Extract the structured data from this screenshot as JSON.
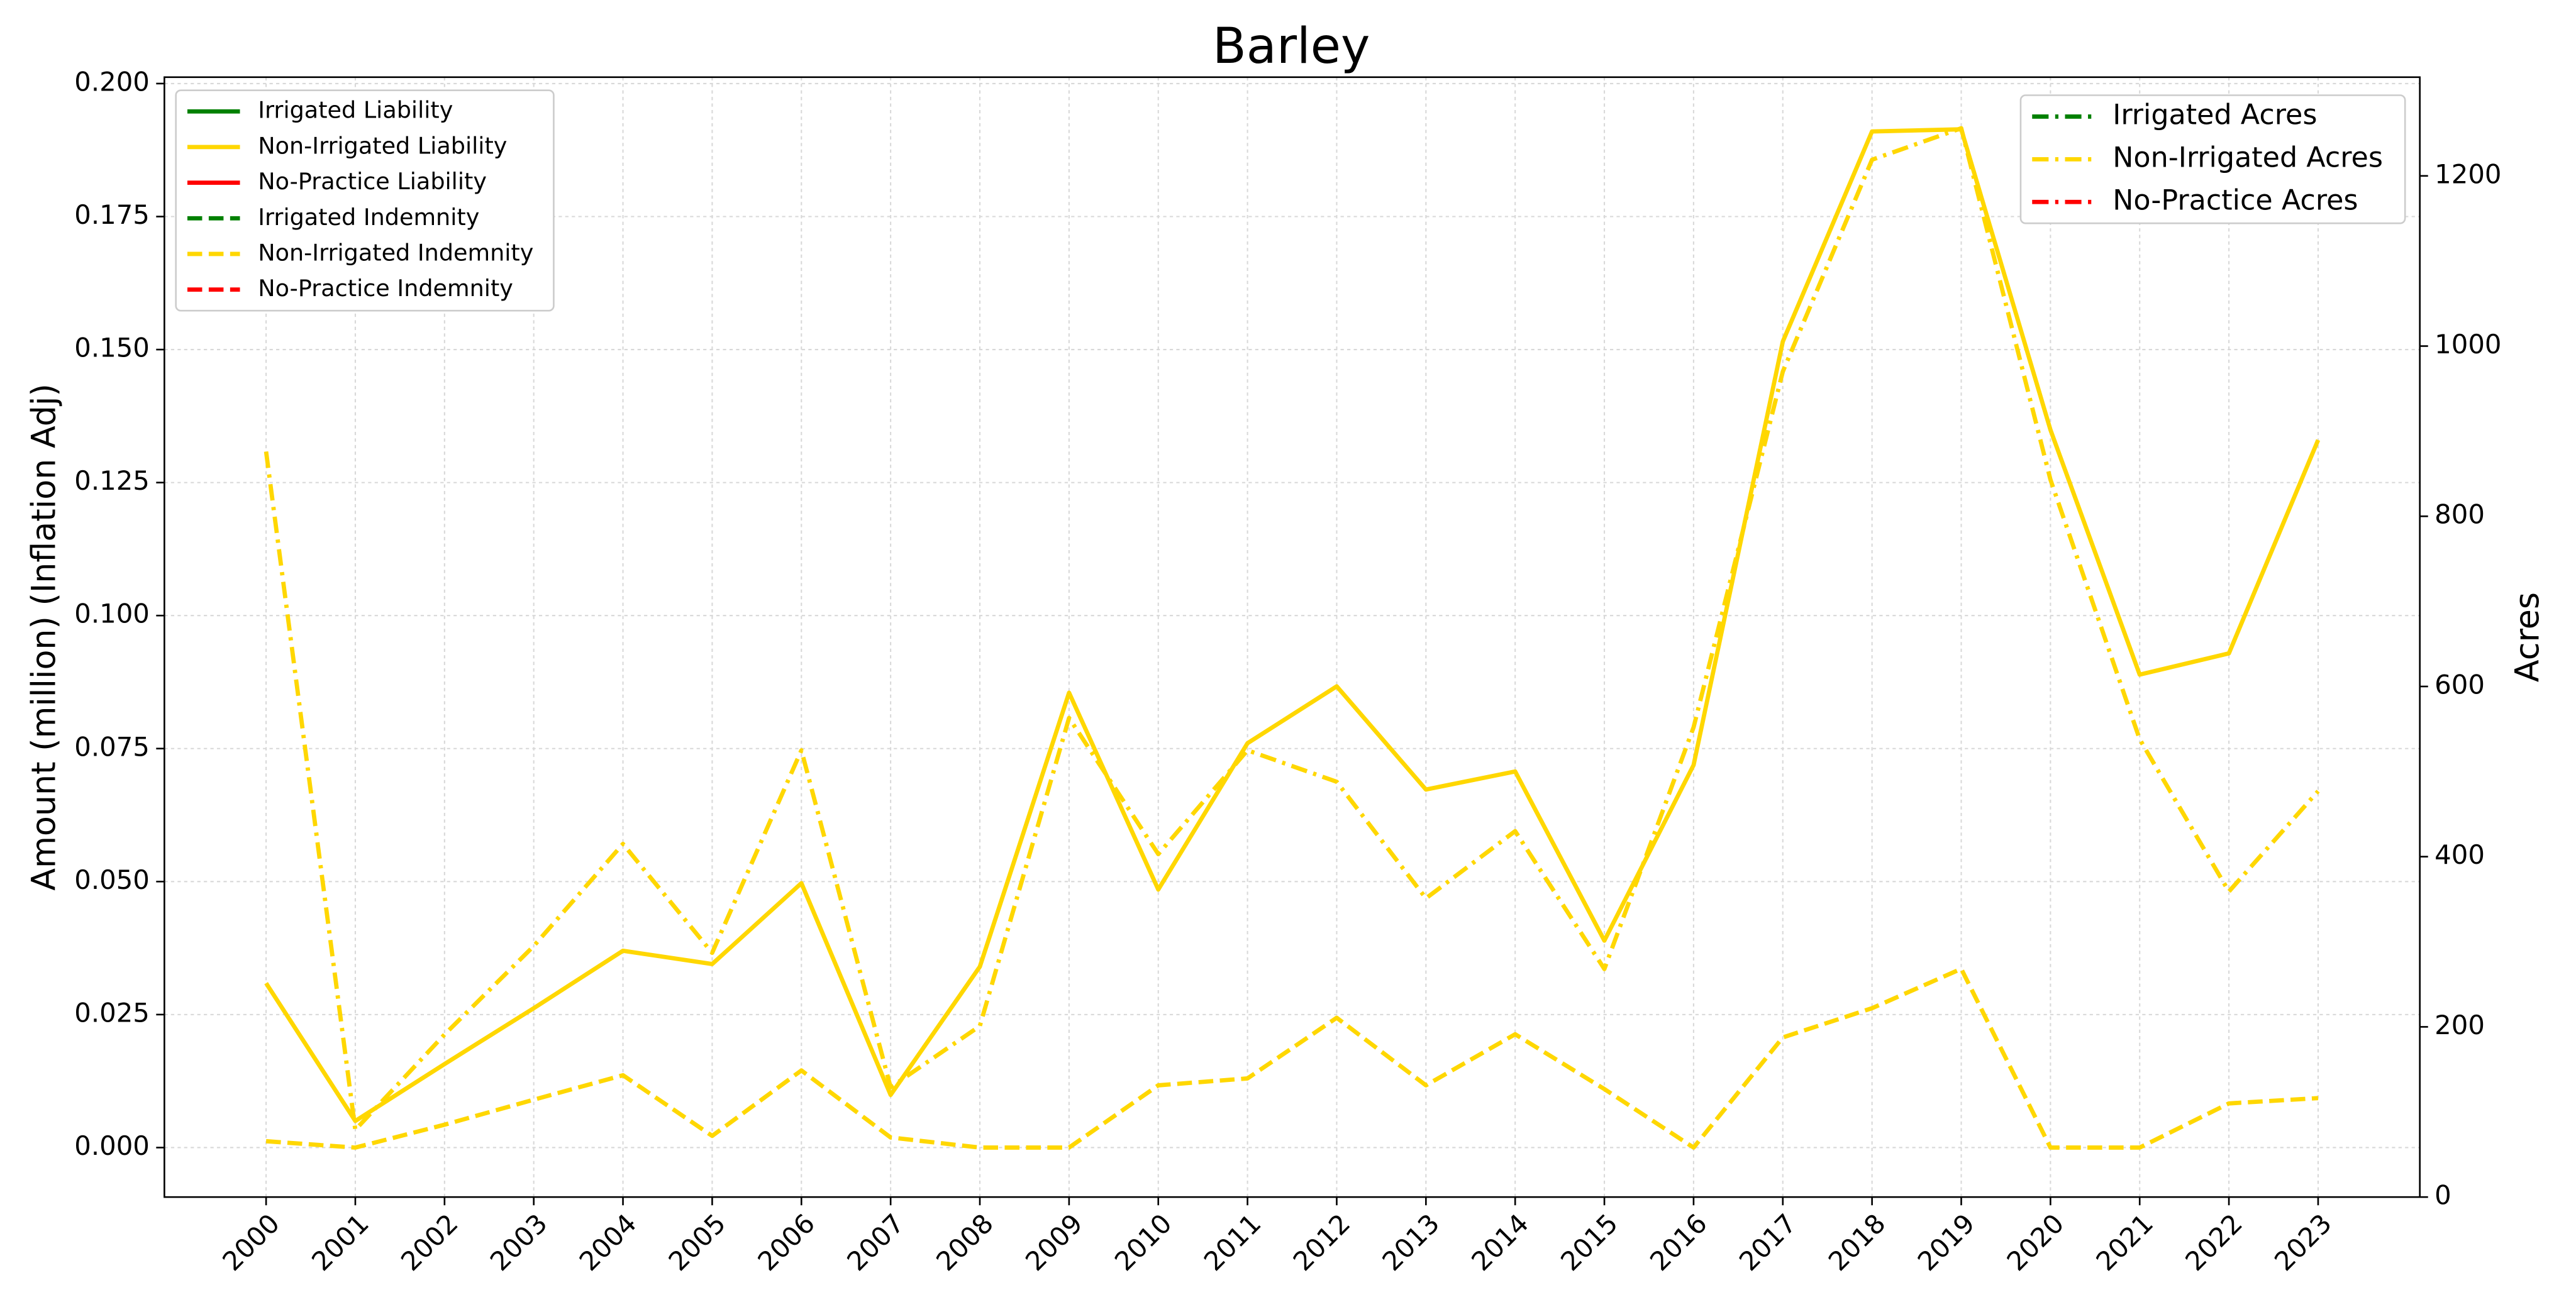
{
  "chart_data": {
    "type": "line",
    "title": "Barley",
    "ylabel": "Amount (million) (Inflation Adj)",
    "y2label": "Acres",
    "x": [
      2000,
      2001,
      2002,
      2003,
      2004,
      2005,
      2006,
      2007,
      2008,
      2009,
      2010,
      2011,
      2012,
      2013,
      2014,
      2015,
      2016,
      2017,
      2018,
      2019,
      2020,
      2021,
      2022,
      2023
    ],
    "xlim": [
      1998.86,
      2024.14
    ],
    "xticks": [
      2000,
      2001,
      2002,
      2003,
      2004,
      2005,
      2006,
      2007,
      2008,
      2009,
      2010,
      2011,
      2012,
      2013,
      2014,
      2015,
      2016,
      2017,
      2018,
      2019,
      2020,
      2021,
      2022,
      2023
    ],
    "ylim": [
      -0.0093,
      0.2012
    ],
    "yticks": [
      {
        "value": 0,
        "label": "0.000"
      },
      {
        "value": 0.025,
        "label": "0.025"
      },
      {
        "value": 0.05,
        "label": "0.050"
      },
      {
        "value": 0.075,
        "label": "0.075"
      },
      {
        "value": 0.1,
        "label": "0.100"
      },
      {
        "value": 0.125,
        "label": "0.125"
      },
      {
        "value": 0.15,
        "label": "0.150"
      },
      {
        "value": 0.175,
        "label": "0.175"
      },
      {
        "value": 0.2,
        "label": "0.200"
      }
    ],
    "y2lim": [
      0,
      1316
    ],
    "y2ticks": [
      0,
      200,
      400,
      600,
      800,
      1000,
      1200
    ],
    "grid": true,
    "legend_loc": "upper left",
    "legend2_loc": "upper right",
    "series": [
      {
        "name": "Irrigated Liability",
        "color": "#008000",
        "linestyle": "solid",
        "values": [
          null,
          null,
          null,
          null,
          null,
          null,
          null,
          null,
          null,
          null,
          null,
          null,
          null,
          null,
          null,
          null,
          null,
          null,
          null,
          null,
          null,
          null,
          null,
          null
        ]
      },
      {
        "name": "Non-Irrigated Liability",
        "color": "#FFD700",
        "linestyle": "solid",
        "values": [
          0.0309,
          0.005,
          0.0157,
          0.0262,
          0.037,
          0.0345,
          0.0497,
          0.0099,
          0.034,
          0.0855,
          0.0485,
          0.076,
          0.0867,
          0.0673,
          0.0707,
          0.0389,
          0.0719,
          0.1515,
          0.191,
          0.1914,
          0.1349,
          0.0889,
          0.0929,
          0.133
        ]
      },
      {
        "name": "No-Practice Liability",
        "color": "#FF0000",
        "linestyle": "solid",
        "values": [
          null,
          null,
          null,
          null,
          null,
          null,
          null,
          null,
          null,
          null,
          null,
          null,
          null,
          null,
          null,
          null,
          null,
          null,
          null,
          null,
          null,
          null,
          null,
          null
        ]
      },
      {
        "name": "Irrigated Indemnity",
        "color": "#008000",
        "linestyle": "dashed",
        "values": [
          null,
          null,
          null,
          null,
          null,
          null,
          null,
          null,
          null,
          null,
          null,
          null,
          null,
          null,
          null,
          null,
          null,
          null,
          null,
          null,
          null,
          null,
          null,
          null
        ]
      },
      {
        "name": "Non-Irrigated Indemnity",
        "color": "#FFD700",
        "linestyle": "dashed",
        "values": [
          0.0012,
          0,
          0.0043,
          0.009,
          0.0136,
          0.0022,
          0.0145,
          0.0019,
          0,
          0,
          0.0117,
          0.013,
          0.0244,
          0.0117,
          0.0213,
          0.011,
          0,
          0.0207,
          0.0262,
          0.0336,
          0,
          0,
          0.0083,
          0.0093
        ]
      },
      {
        "name": "No-Practice Indemnity",
        "color": "#FF0000",
        "linestyle": "dashed",
        "values": [
          null,
          null,
          null,
          null,
          null,
          null,
          null,
          null,
          null,
          null,
          null,
          null,
          null,
          null,
          null,
          null,
          null,
          null,
          null,
          null,
          null,
          null,
          null,
          null
        ]
      },
      {
        "name": "Irrigated Acres",
        "color": "#008000",
        "linestyle": "dashdot",
        "axis": "y2",
        "values": [
          null,
          null,
          null,
          null,
          null,
          null,
          null,
          null,
          null,
          null,
          null,
          null,
          null,
          null,
          null,
          null,
          null,
          null,
          null,
          null,
          null,
          null,
          null,
          null
        ]
      },
      {
        "name": "Non-Irrigated Acres",
        "color": "#FFD700",
        "linestyle": "dashdot",
        "axis": "y2",
        "values": [
          876,
          79,
          191,
          295,
          415,
          287,
          525,
          129,
          201,
          563,
          403,
          525,
          488,
          351,
          430,
          268,
          552,
          970,
          1219,
          1256,
          843,
          538,
          359,
          477
        ]
      },
      {
        "name": "No-Practice Acres",
        "color": "#FF0000",
        "linestyle": "dashdot",
        "axis": "y2",
        "values": [
          null,
          null,
          null,
          null,
          null,
          null,
          null,
          null,
          null,
          null,
          null,
          null,
          null,
          null,
          null,
          null,
          null,
          null,
          null,
          null,
          null,
          null,
          null,
          null
        ]
      }
    ]
  }
}
